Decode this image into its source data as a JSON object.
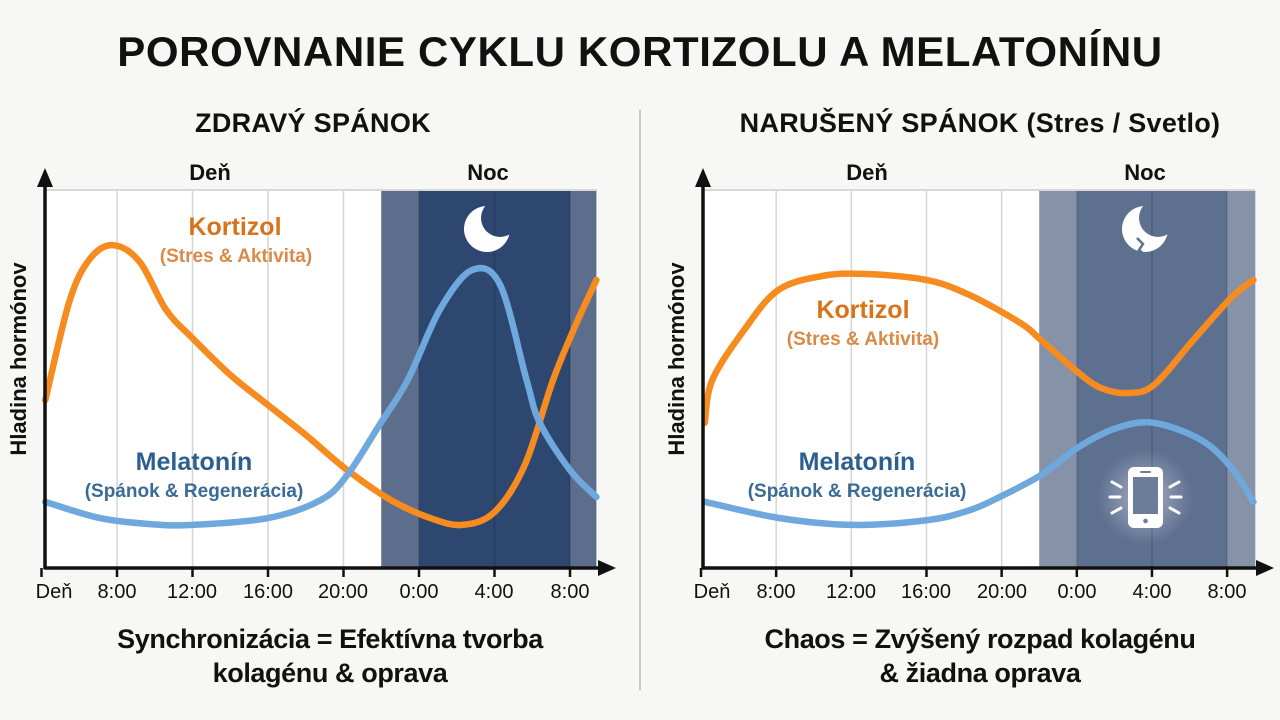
{
  "title": "POROVNANIE CYKLU KORTIZOLU A MELATONÍNU",
  "panels": [
    {
      "title": "ZDRAVÝ SPÁNOK",
      "period_labels": {
        "day": "Deň",
        "night": "Noc"
      },
      "y_axis_label": "Hladina hormónov",
      "series_labels": {
        "cortisol": {
          "name": "Kortizol",
          "sub": "(Stres & Aktivita)"
        },
        "melatonin": {
          "name": "Melatonín",
          "sub": "(Spánok & Regenerácia)"
        }
      },
      "icons": [
        "moon-icon"
      ],
      "caption": [
        "Synchronizácia = Efektívna tvorba",
        "kolagénu & oprava"
      ]
    },
    {
      "title": "NARUŠENÝ SPÁNOK (Stres / Svetlo)",
      "period_labels": {
        "day": "Deň",
        "night": "Noc"
      },
      "y_axis_label": "Hladina hormónov",
      "series_labels": {
        "cortisol": {
          "name": "Kortizol",
          "sub": "(Stres & Aktivita)"
        },
        "melatonin": {
          "name": "Melatonín",
          "sub": "(Spánok & Regenerácia)"
        }
      },
      "icons": [
        "broken-moon-icon",
        "smartphone-light-icon"
      ],
      "caption": [
        "Chaos = Zvýšený rozpad kolagénu",
        "& žiadna oprava"
      ]
    }
  ],
  "colors": {
    "cortisol_line": "#F68B1F",
    "melatonin_line": "#6FA8DC",
    "cortisol_label": "#D9731A",
    "melatonin_label": "#2C5F8E",
    "healthy_night": "#2E4770",
    "healthy_twilight": "#5D6E8C",
    "disrupted_night": "#5E7090",
    "disrupted_twilight": "#8592A8"
  },
  "chart_data": [
    {
      "type": "line",
      "title": "ZDRAVÝ SPÁNOK",
      "xlabel": "",
      "ylabel": "Hladina hormónov",
      "x_unit": "hour (4 = 4:00 day 1, 24 = 0:00, 32 = 8:00 next day)",
      "x_tick_hours": [
        4,
        8,
        12,
        16,
        20,
        24,
        28,
        32
      ],
      "x_tick_labels": [
        "Deň",
        "8:00",
        "12:00",
        "16:00",
        "20:00",
        "0:00",
        "4:00",
        "8:00"
      ],
      "xlim": [
        4,
        33.4
      ],
      "ylim": [
        0,
        100
      ],
      "grid": true,
      "bands": [
        {
          "from": 22,
          "to": 24,
          "label": "twilight",
          "color": "#5D6E8C"
        },
        {
          "from": 24,
          "to": 32,
          "label": "Noc",
          "color": "#2E4770"
        },
        {
          "from": 32,
          "to": 33.4,
          "label": "twilight",
          "color": "#5D6E8C"
        }
      ],
      "series": [
        {
          "name": "Kortizol (Stres & Aktivita)",
          "color": "#F68B1F",
          "points": [
            [
              4.2,
              44.4
            ],
            [
              5.5,
              70.9
            ],
            [
              6.6,
              82.0
            ],
            [
              7.8,
              85.4
            ],
            [
              9.2,
              81.0
            ],
            [
              10.6,
              68.3
            ],
            [
              12.0,
              60.8
            ],
            [
              14.0,
              51.1
            ],
            [
              16.0,
              43.1
            ],
            [
              18.0,
              35.2
            ],
            [
              20.2,
              25.9
            ],
            [
              22.5,
              18.0
            ],
            [
              24.6,
              13.2
            ],
            [
              26.3,
              11.4
            ],
            [
              28.0,
              14.8
            ],
            [
              29.6,
              27.2
            ],
            [
              31.1,
              49.7
            ],
            [
              32.3,
              64.3
            ],
            [
              33.4,
              76.2
            ]
          ]
        },
        {
          "name": "Melatonín (Spánok & Regenerácia)",
          "color": "#6FA8DC",
          "points": [
            [
              4.2,
              17.5
            ],
            [
              7.1,
              13.2
            ],
            [
              9.8,
              11.6
            ],
            [
              12.0,
              11.4
            ],
            [
              16.0,
              13.2
            ],
            [
              18.8,
              18.0
            ],
            [
              20.2,
              24.6
            ],
            [
              21.9,
              37.8
            ],
            [
              23.4,
              49.7
            ],
            [
              25.1,
              68.3
            ],
            [
              26.8,
              78.8
            ],
            [
              28.3,
              74.9
            ],
            [
              29.7,
              49.7
            ],
            [
              30.4,
              38.4
            ],
            [
              32.0,
              25.9
            ],
            [
              33.4,
              18.8
            ]
          ]
        }
      ]
    },
    {
      "type": "line",
      "title": "NARUŠENÝ SPÁNOK (Stres / Svetlo)",
      "xlabel": "",
      "ylabel": "Hladina hormónov",
      "x_unit": "hour (4 = 4:00 day 1, 24 = 0:00, 32 = 8:00 next day)",
      "x_tick_hours": [
        4,
        8,
        12,
        16,
        20,
        24,
        28,
        32
      ],
      "x_tick_labels": [
        "Deň",
        "8:00",
        "12:00",
        "16:00",
        "20:00",
        "0:00",
        "4:00",
        "8:00"
      ],
      "xlim": [
        4,
        33.5
      ],
      "ylim": [
        0,
        100
      ],
      "grid": true,
      "bands": [
        {
          "from": 22,
          "to": 24,
          "label": "twilight",
          "color": "#8592A8"
        },
        {
          "from": 24,
          "to": 32,
          "label": "Noc",
          "color": "#5E7090"
        },
        {
          "from": 32,
          "to": 33.5,
          "label": "twilight",
          "color": "#8592A8"
        }
      ],
      "series": [
        {
          "name": "Kortizol (Stres & Aktivita)",
          "color": "#F68B1F",
          "points": [
            [
              4.2,
              38.4
            ],
            [
              4.6,
              49.7
            ],
            [
              6.3,
              63.0
            ],
            [
              8.1,
              73.5
            ],
            [
              10.4,
              77.2
            ],
            [
              12.6,
              77.8
            ],
            [
              16.0,
              76.2
            ],
            [
              18.3,
              72.2
            ],
            [
              21.0,
              64.8
            ],
            [
              22.1,
              60.3
            ],
            [
              24.1,
              51.6
            ],
            [
              25.3,
              47.6
            ],
            [
              26.7,
              46.3
            ],
            [
              28.1,
              48.4
            ],
            [
              30.2,
              60.3
            ],
            [
              32.2,
              71.4
            ],
            [
              33.4,
              76.2
            ]
          ]
        },
        {
          "name": "Melatonín (Spánok & Regenerácia)",
          "color": "#6FA8DC",
          "points": [
            [
              4.2,
              17.5
            ],
            [
              8.2,
              13.2
            ],
            [
              12.1,
              11.4
            ],
            [
              16.1,
              12.7
            ],
            [
              18.3,
              15.3
            ],
            [
              19.9,
              18.8
            ],
            [
              22.1,
              24.6
            ],
            [
              24.1,
              32.0
            ],
            [
              26.1,
              37.0
            ],
            [
              28.1,
              38.4
            ],
            [
              30.6,
              33.9
            ],
            [
              32.2,
              26.7
            ],
            [
              33.4,
              17.5
            ]
          ]
        }
      ]
    }
  ]
}
